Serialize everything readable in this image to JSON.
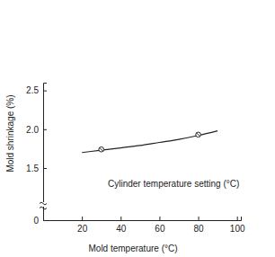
{
  "chart_data": {
    "type": "line",
    "x_label": "Mold temperature (°C)",
    "y_label": "Mold shrinkage (%)",
    "annotations": [
      "Cylinder temperature setting (°C)"
    ],
    "series": [
      {
        "type": "line",
        "color": "#222222",
        "line_style": "solid",
        "x": [
          20,
          30,
          40,
          50,
          60,
          70,
          80,
          90
        ],
        "values": [
          1.7,
          1.73,
          1.76,
          1.79,
          1.83,
          1.87,
          1.92,
          1.98
        ]
      },
      {
        "type": "scatter",
        "color": "#222222",
        "marker": "circle",
        "x": [
          30,
          80
        ],
        "values": [
          1.74,
          1.93
        ]
      }
    ],
    "xlim": [
      0,
      102
    ],
    "xticks": [
      20,
      40,
      60,
      80,
      100
    ],
    "ylim": [
      0,
      2.6
    ],
    "yticks": [
      0,
      1.5,
      {
        "value": 2,
        "label": "2.0"
      },
      2.5
    ],
    "grid": false
  }
}
